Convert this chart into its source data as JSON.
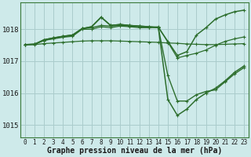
{
  "xlabel": "Graphe pression niveau de la mer (hPa)",
  "bg_color": "#ceeaea",
  "grid_color": "#aacccc",
  "line_color": "#2d6e2d",
  "ylim": [
    1014.6,
    1018.85
  ],
  "xlim": [
    -0.5,
    23.5
  ],
  "yticks": [
    1015,
    1016,
    1017,
    1018
  ],
  "xticks": [
    0,
    1,
    2,
    3,
    4,
    5,
    6,
    7,
    8,
    9,
    10,
    11,
    12,
    13,
    14,
    15,
    16,
    17,
    18,
    19,
    20,
    21,
    22,
    23
  ],
  "series": [
    {
      "y": [
        1017.52,
        1017.52,
        1017.55,
        1017.57,
        1017.59,
        1017.61,
        1017.63,
        1017.64,
        1017.64,
        1017.64,
        1017.63,
        1017.62,
        1017.61,
        1017.6,
        1017.59,
        1017.57,
        1017.56,
        1017.54,
        1017.53,
        1017.52,
        1017.52,
        1017.53,
        1017.54,
        1017.55
      ],
      "lw": 0.9,
      "ms": 2.5
    },
    {
      "y": [
        1017.52,
        1017.53,
        1017.65,
        1017.7,
        1017.75,
        1017.78,
        1018.0,
        1018.0,
        1018.08,
        1018.05,
        1018.1,
        1018.08,
        1018.05,
        1018.05,
        1018.08,
        1017.6,
        1017.1,
        1017.18,
        1017.25,
        1017.35,
        1017.5,
        1017.62,
        1017.7,
        1017.76
      ],
      "lw": 0.9,
      "ms": 2.5
    },
    {
      "y": [
        1017.52,
        1017.53,
        1017.65,
        1017.72,
        1017.77,
        1017.8,
        1018.02,
        1018.05,
        1018.12,
        1018.1,
        1018.12,
        1018.1,
        1018.08,
        1018.06,
        1018.05,
        1016.55,
        1015.75,
        1015.75,
        1015.95,
        1016.05,
        1016.1,
        1016.35,
        1016.6,
        1016.8
      ],
      "lw": 1.0,
      "ms": 2.5
    },
    {
      "y": [
        1017.52,
        1017.53,
        1017.67,
        1017.73,
        1017.78,
        1017.82,
        1018.02,
        1018.08,
        1018.38,
        1018.12,
        1018.15,
        1018.12,
        1018.1,
        1018.08,
        1018.06,
        1015.8,
        1015.3,
        1015.5,
        1015.8,
        1016.0,
        1016.15,
        1016.38,
        1016.65,
        1016.85
      ],
      "lw": 1.1,
      "ms": 2.5
    },
    {
      "y": [
        1017.52,
        1017.53,
        1017.67,
        1017.73,
        1017.78,
        1017.82,
        1018.02,
        1018.08,
        1018.38,
        1018.12,
        1018.15,
        1018.12,
        1018.1,
        1018.08,
        1018.06,
        1017.62,
        1017.18,
        1017.3,
        1017.82,
        1018.05,
        1018.32,
        1018.45,
        1018.55,
        1018.6
      ],
      "lw": 1.1,
      "ms": 3.0
    }
  ],
  "font_size_xlabel": 7,
  "font_size_yticks": 6.5,
  "font_size_xticks": 5.5
}
